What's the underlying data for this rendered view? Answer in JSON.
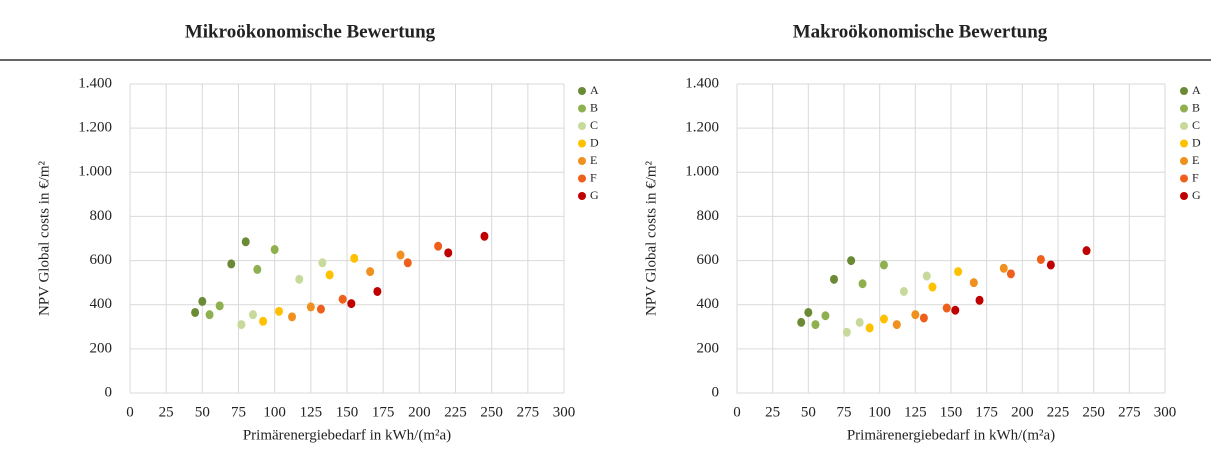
{
  "chart_data": [
    {
      "type": "scatter",
      "title": "Mikroökonomische Bewertung",
      "x_label": "Primärenergiebedarf  in kWh/(m²a)",
      "y_label": "NPV Global costs in €/m²",
      "xlim": [
        0,
        300
      ],
      "xticks": [
        0,
        25,
        50,
        75,
        100,
        125,
        150,
        175,
        200,
        225,
        250,
        275,
        300
      ],
      "ylim": [
        0,
        1400
      ],
      "yticks": [
        0,
        200,
        400,
        600,
        800,
        {
          "value": 1000,
          "label": "1.000"
        },
        {
          "value": 1200,
          "label": "1.200"
        },
        {
          "value": 1400,
          "label": "1.400"
        }
      ],
      "grid": true,
      "legend": "right",
      "series": [
        {
          "name": "A",
          "color": "#6b8a35",
          "x": [
            45,
            50,
            70,
            80
          ],
          "values": [
            365,
            415,
            585,
            685
          ]
        },
        {
          "name": "B",
          "color": "#8fb04f",
          "x": [
            55,
            62,
            88,
            100
          ],
          "values": [
            355,
            395,
            560,
            650
          ]
        },
        {
          "name": "C",
          "color": "#c7da9c",
          "x": [
            77,
            85,
            117,
            133
          ],
          "values": [
            310,
            355,
            515,
            590
          ]
        },
        {
          "name": "D",
          "color": "#ffc000",
          "x": [
            92,
            103,
            138,
            155
          ],
          "values": [
            325,
            370,
            535,
            610
          ]
        },
        {
          "name": "E",
          "color": "#f0901e",
          "x": [
            112,
            125,
            166,
            187
          ],
          "values": [
            345,
            390,
            550,
            625
          ]
        },
        {
          "name": "F",
          "color": "#ee5f1b",
          "x": [
            132,
            147,
            192,
            213
          ],
          "values": [
            380,
            425,
            590,
            665
          ]
        },
        {
          "name": "G",
          "color": "#c00000",
          "x": [
            153,
            171,
            220,
            245
          ],
          "values": [
            405,
            460,
            635,
            710
          ]
        }
      ]
    },
    {
      "type": "scatter",
      "title": "Makroökonomische Bewertung",
      "x_label": "Primärenergiebedarf  in kWh/(m²a)",
      "y_label": "NPV Global costs in €/m²",
      "xlim": [
        0,
        300
      ],
      "xticks": [
        0,
        25,
        50,
        75,
        100,
        125,
        150,
        175,
        200,
        225,
        250,
        275,
        300
      ],
      "ylim": [
        0,
        1400
      ],
      "yticks": [
        0,
        200,
        400,
        600,
        800,
        {
          "value": 1000,
          "label": "1.000"
        },
        {
          "value": 1200,
          "label": "1.200"
        },
        {
          "value": 1400,
          "label": "1.400"
        }
      ],
      "grid": true,
      "legend": "right",
      "series": [
        {
          "name": "A",
          "color": "#6b8a35",
          "x": [
            45,
            50,
            68,
            80
          ],
          "values": [
            320,
            365,
            515,
            600
          ]
        },
        {
          "name": "B",
          "color": "#8fb04f",
          "x": [
            55,
            62,
            88,
            103
          ],
          "values": [
            310,
            350,
            495,
            580
          ]
        },
        {
          "name": "C",
          "color": "#c7da9c",
          "x": [
            77,
            86,
            117,
            133
          ],
          "values": [
            275,
            320,
            460,
            530
          ]
        },
        {
          "name": "D",
          "color": "#ffc000",
          "x": [
            93,
            103,
            137,
            155
          ],
          "values": [
            295,
            335,
            480,
            550
          ]
        },
        {
          "name": "E",
          "color": "#f0901e",
          "x": [
            112,
            125,
            166,
            187
          ],
          "values": [
            310,
            355,
            500,
            565
          ]
        },
        {
          "name": "F",
          "color": "#ee5f1b",
          "x": [
            131,
            147,
            192,
            213
          ],
          "values": [
            340,
            385,
            540,
            605
          ]
        },
        {
          "name": "G",
          "color": "#c00000",
          "x": [
            153,
            170,
            220,
            245
          ],
          "values": [
            375,
            420,
            580,
            645
          ]
        }
      ]
    }
  ]
}
